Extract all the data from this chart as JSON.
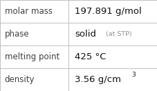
{
  "rows": [
    {
      "label": "molar mass",
      "value": "197.891 g/mol",
      "superscript": null,
      "small_text": null
    },
    {
      "label": "phase",
      "value": "solid",
      "superscript": null,
      "small_text": "(at STP)"
    },
    {
      "label": "melting point",
      "value": "425 °C",
      "superscript": null,
      "small_text": null
    },
    {
      "label": "density",
      "value": "3.56 g/cm",
      "superscript": "3",
      "small_text": null
    }
  ],
  "background_color": "#ffffff",
  "border_color": "#c0c0c0",
  "label_color": "#404040",
  "value_color": "#111111",
  "small_text_color": "#909090",
  "font_size_label": 8.5,
  "font_size_value": 9.5,
  "font_size_small": 6.8,
  "font_size_super": 6.5,
  "col_split": 0.435
}
